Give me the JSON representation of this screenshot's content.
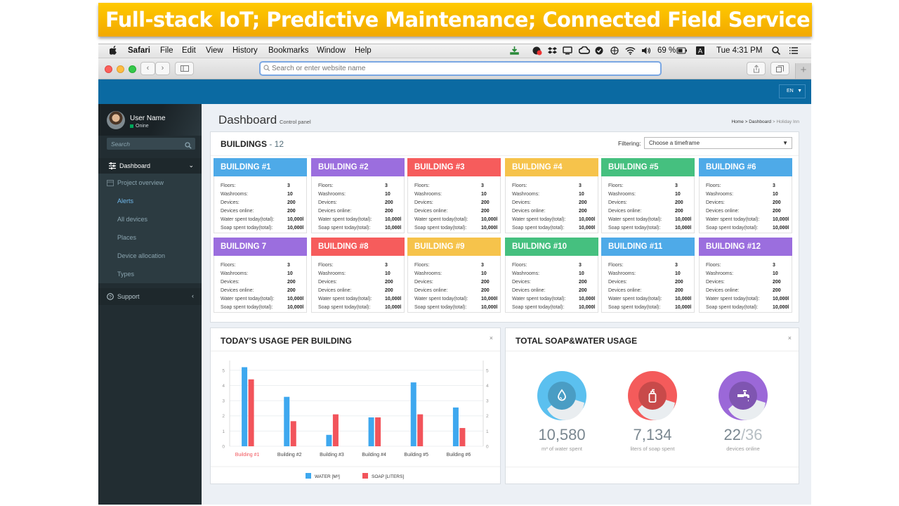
{
  "slide": {
    "title": "Full-stack IoT; Predictive Maintenance; Connected Field Service"
  },
  "browser": {
    "menu": [
      "Safari",
      "File",
      "Edit",
      "View",
      "History",
      "Bookmarks",
      "Window",
      "Help"
    ],
    "battery": "69 %",
    "clock": "Tue 4:31 PM",
    "address_placeholder": "Search or enter website name"
  },
  "header": {
    "lang": "EN"
  },
  "sidebar": {
    "user_name": "User Name",
    "user_status": "Onine",
    "search_placeholder": "Search",
    "nav": {
      "dashboard": "Dashboard",
      "project_overview": "Project overview",
      "alerts": "Alerts",
      "all_devices": "All devices",
      "places": "Places",
      "device_allocation": "Device allocation",
      "types": "Types",
      "support": "Support"
    }
  },
  "page": {
    "title": "Dashboard",
    "subtitle": "Control panel",
    "breadcrumb": {
      "home": "Home",
      "sep1": " > ",
      "dashboard": "Dashboard",
      "sep2": " > ",
      "current": "Holiday Inn"
    }
  },
  "buildings": {
    "title": "BUILDINGS",
    "count": "- 12",
    "filter_label": "Filtering:",
    "filter_value": "Choose a timeframe",
    "row_labels": [
      "Floors:",
      "Washrooms:",
      "Devices:",
      "Devices online:",
      "Water spent today(total):",
      "Soap spent today(total):"
    ],
    "items": [
      {
        "name": "BUILDING #1",
        "color": "#4eaae8",
        "values": [
          "3",
          "10",
          "200",
          "200",
          "10,000l",
          "10,000l"
        ]
      },
      {
        "name": "BUILDING #2",
        "color": "#9b6ede",
        "values": [
          "3",
          "10",
          "200",
          "200",
          "10,000l",
          "10,000l"
        ]
      },
      {
        "name": "BUILDING #3",
        "color": "#f65c5c",
        "values": [
          "3",
          "10",
          "200",
          "200",
          "10,000l",
          "10,000l"
        ]
      },
      {
        "name": "BUILDING #4",
        "color": "#f6c34b",
        "values": [
          "3",
          "10",
          "200",
          "200",
          "10,000l",
          "10,000l"
        ]
      },
      {
        "name": "BUILDING #5",
        "color": "#45c07f",
        "values": [
          "3",
          "10",
          "200",
          "200",
          "10,000l",
          "10,000l"
        ]
      },
      {
        "name": "BUILDING #6",
        "color": "#4eaae8",
        "values": [
          "3",
          "10",
          "200",
          "200",
          "10,000l",
          "10,000l"
        ]
      },
      {
        "name": "BUILDING 7",
        "color": "#9b6ede",
        "values": [
          "3",
          "10",
          "200",
          "200",
          "10,000l",
          "10,000l"
        ]
      },
      {
        "name": "BUILDING #8",
        "color": "#f65c5c",
        "values": [
          "3",
          "10",
          "200",
          "200",
          "10,000l",
          "10,000l"
        ]
      },
      {
        "name": "BUILDING #9",
        "color": "#f6c34b",
        "values": [
          "3",
          "10",
          "200",
          "200",
          "10,000l",
          "10,000l"
        ]
      },
      {
        "name": "BUILDING #10",
        "color": "#45c07f",
        "values": [
          "3",
          "10",
          "200",
          "200",
          "10,000l",
          "10,000l"
        ]
      },
      {
        "name": "BUILDING #11",
        "color": "#4eaae8",
        "values": [
          "3",
          "10",
          "200",
          "200",
          "10,000l",
          "10,000l"
        ]
      },
      {
        "name": "BUILDING #12",
        "color": "#9b6ede",
        "values": [
          "3",
          "10",
          "200",
          "200",
          "10,000l",
          "10,000l"
        ]
      }
    ]
  },
  "usage": {
    "title": "TODAY'S USAGE PER BUILDING",
    "close": "×"
  },
  "chart_data": {
    "type": "bar",
    "title": "TODAY'S USAGE PER BUILDING",
    "categories": [
      "Building #1",
      "Building #2",
      "Building #3",
      "Building #4",
      "Building #5",
      "Building #6"
    ],
    "series": [
      {
        "name": "WATER [M³]",
        "color": "#3ea8ef",
        "values": [
          5.2,
          3.25,
          0.75,
          1.9,
          4.2,
          2.55
        ]
      },
      {
        "name": "SOAP [LITERS]",
        "color": "#f2545b",
        "values": [
          4.4,
          1.65,
          2.1,
          1.9,
          2.1,
          1.2
        ]
      }
    ],
    "yticks": [
      "0",
      "1",
      "2",
      "3",
      "4",
      "5"
    ],
    "ylim": [
      0,
      5.5
    ],
    "highlight_category_color": "#f2545b"
  },
  "total": {
    "title": "TOTAL SOAP&WATER USAGE",
    "close": "×",
    "stats": [
      {
        "value": "10,580",
        "caption": "m³ of water spent",
        "color": "#5bc0ef",
        "icon": "water-drop-icon"
      },
      {
        "value": "7,134",
        "caption": "liters of soap spent",
        "color": "#f45b5b",
        "icon": "soap-bottle-icon"
      },
      {
        "value": "22",
        "value_total": "/36",
        "caption": "devices online",
        "color": "#9b68d8",
        "icon": "faucet-icon"
      }
    ]
  }
}
